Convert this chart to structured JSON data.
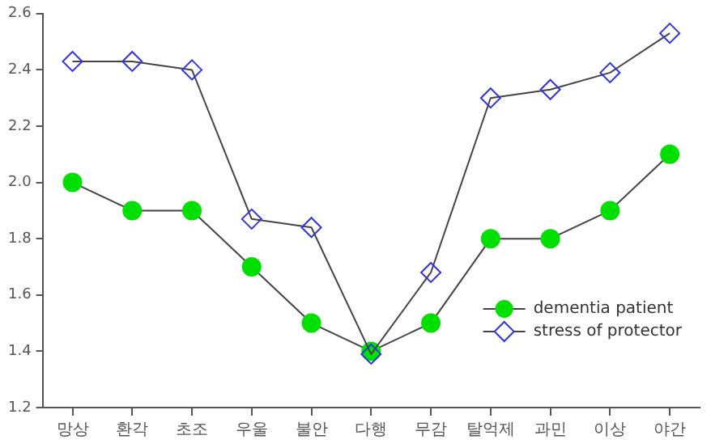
{
  "chart_data": {
    "type": "line",
    "categories": [
      "망상",
      "환각",
      "초조",
      "우울",
      "불안",
      "다행",
      "무감",
      "탈억제",
      "과민",
      "이상",
      "야간"
    ],
    "series": [
      {
        "name": "dementia patient",
        "color": "#00e000",
        "marker": "circle",
        "values": [
          2.0,
          1.9,
          1.9,
          1.7,
          1.5,
          1.4,
          1.5,
          1.8,
          1.8,
          1.9,
          2.1
        ]
      },
      {
        "name": "stress of protector",
        "color": "#3333dd",
        "marker": "diamond",
        "values": [
          2.43,
          2.43,
          2.4,
          1.87,
          1.84,
          1.39,
          1.68,
          2.3,
          2.33,
          2.39,
          2.53
        ]
      }
    ],
    "ylim": [
      1.2,
      2.6
    ],
    "yticks": [
      1.2,
      1.4,
      1.6,
      1.8,
      {
        "value": 2,
        "label": "2.0"
      },
      2.2,
      2.4,
      2.6
    ],
    "grid": false,
    "legend": "bottom right"
  }
}
